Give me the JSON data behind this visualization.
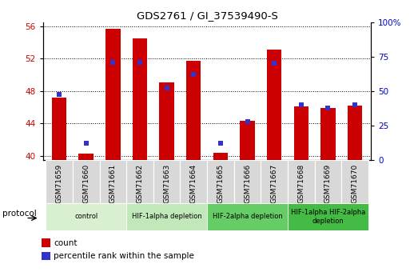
{
  "title": "GDS2761 / GI_37539490-S",
  "samples": [
    "GSM71659",
    "GSM71660",
    "GSM71661",
    "GSM71662",
    "GSM71663",
    "GSM71664",
    "GSM71665",
    "GSM71666",
    "GSM71667",
    "GSM71668",
    "GSM71669",
    "GSM71670"
  ],
  "counts": [
    47.2,
    40.3,
    55.7,
    54.5,
    49.1,
    51.7,
    40.4,
    44.3,
    53.1,
    46.1,
    45.9,
    46.2
  ],
  "percentiles_pct": [
    47.5,
    12.0,
    71.0,
    70.5,
    52.0,
    62.0,
    12.5,
    28.0,
    70.0,
    40.0,
    38.0,
    40.0
  ],
  "ylim_left": [
    39.5,
    56.5
  ],
  "ylim_right": [
    0,
    100
  ],
  "yticks_left": [
    40,
    44,
    48,
    52,
    56
  ],
  "yticks_right": [
    0,
    25,
    50,
    75,
    100
  ],
  "ytick_labels_left": [
    "40",
    "44",
    "48",
    "52",
    "56"
  ],
  "ytick_labels_right": [
    "0",
    "25",
    "50",
    "75",
    "100%"
  ],
  "bar_color": "#cc0000",
  "dot_color": "#3333cc",
  "bar_width": 0.55,
  "protocol_groups": [
    {
      "label": "control",
      "start": 0,
      "end": 2,
      "color": "#d8f0d0"
    },
    {
      "label": "HIF-1alpha depletion",
      "start": 3,
      "end": 5,
      "color": "#c0e8b8"
    },
    {
      "label": "HIF-2alpha depletion",
      "start": 6,
      "end": 8,
      "color": "#66cc66"
    },
    {
      "label": "HIF-1alpha HIF-2alpha\ndepletion",
      "start": 9,
      "end": 11,
      "color": "#44bb44"
    }
  ],
  "legend_count_label": "count",
  "legend_pct_label": "percentile rank within the sample",
  "protocol_label": "protocol",
  "tick_label_color_left": "#cc0000",
  "tick_label_color_right": "#0000cc",
  "xtick_bg_color": "#d8d8d8",
  "plot_bg_color": "#ffffff"
}
